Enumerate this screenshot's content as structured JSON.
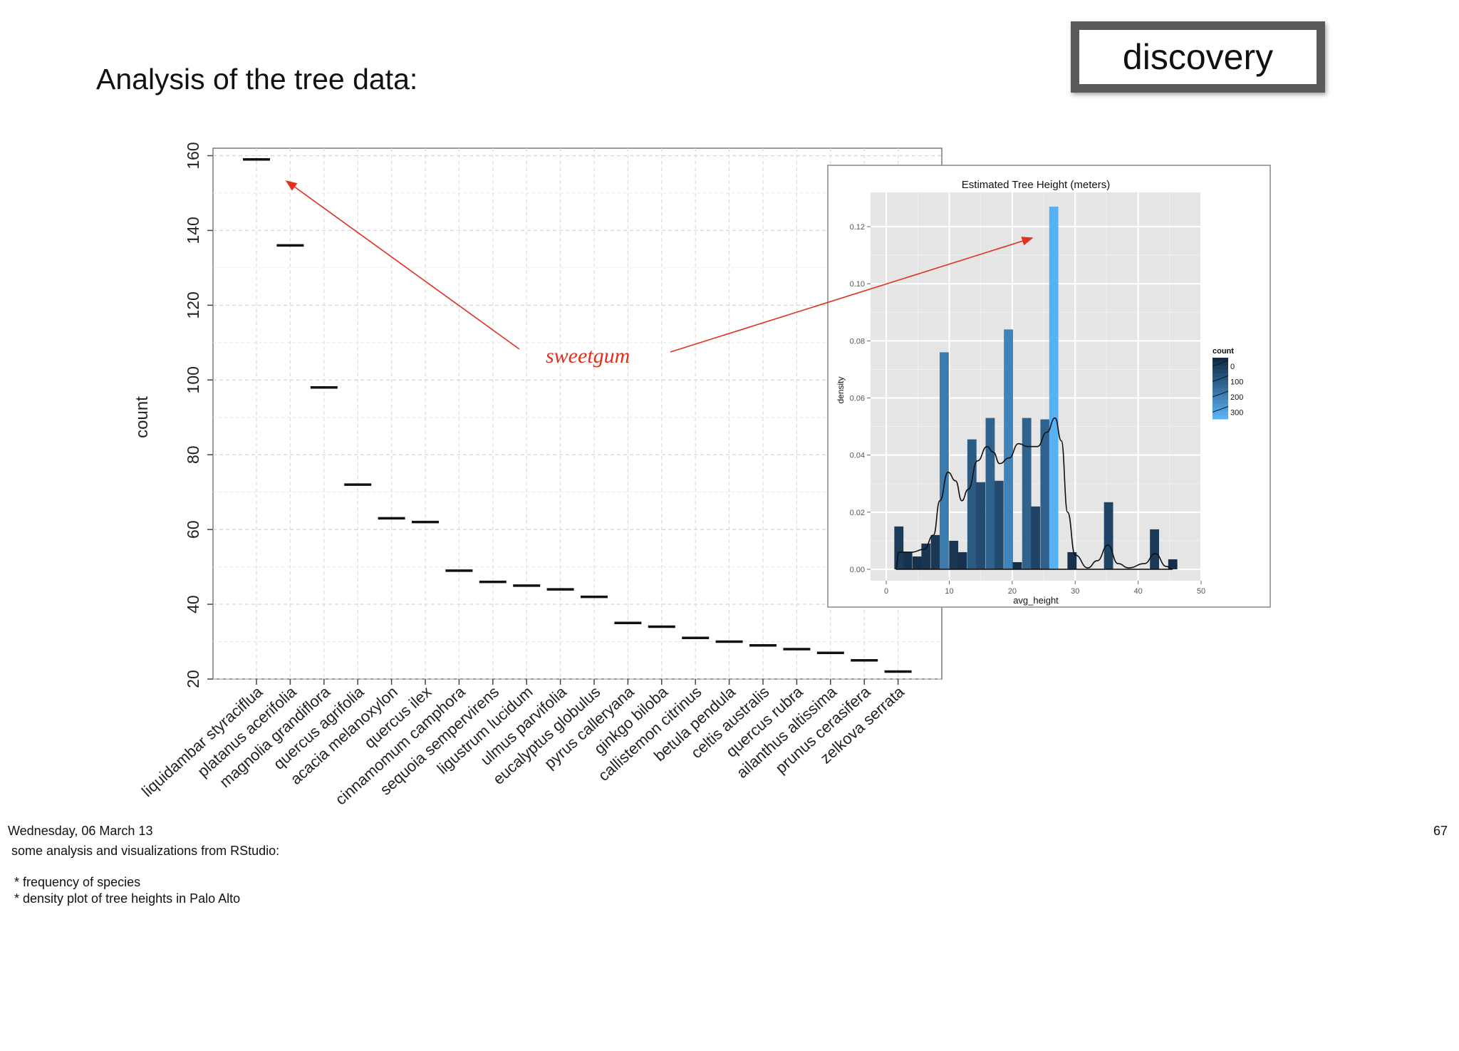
{
  "slide": {
    "title": "Analysis of the tree data:",
    "badge": "discovery",
    "annotation": "sweetgum",
    "annotation_color": "#e0301e",
    "date": "Wednesday, 06 March 13",
    "page_number": "67",
    "notes": [
      "some analysis and visualizations from RStudio:",
      "* frequency of species",
      "* density plot of tree heights in Palo Alto"
    ]
  },
  "chart_data": [
    {
      "type": "bar",
      "title": "",
      "xlabel": "",
      "ylabel": "count",
      "ylim": [
        20,
        162
      ],
      "yticks": [
        20,
        40,
        60,
        80,
        100,
        120,
        140,
        160
      ],
      "grid": true,
      "categories": [
        "liquidambar styraciflua",
        "platanus acerifolia",
        "magnolia grandiflora",
        "quercus agrifolia",
        "acacia melanoxylon",
        "quercus ilex",
        "cinnamomum camphora",
        "sequoia sempervirens",
        "ligustrum lucidum",
        "ulmus parvifolia",
        "eucalyptus globulus",
        "pyrus calleryana",
        "ginkgo biloba",
        "callistemon citrinus",
        "betula pendula",
        "celtis australis",
        "quercus rubra",
        "ailanthus altissima",
        "prunus cerasifera",
        "zelkova serrata"
      ],
      "values": [
        159,
        136,
        98,
        72,
        63,
        62,
        49,
        46,
        45,
        44,
        42,
        35,
        34,
        31,
        30,
        29,
        28,
        27,
        25,
        22
      ]
    },
    {
      "type": "bar",
      "title": "Estimated Tree Height (meters)",
      "xlabel": "avg_height",
      "ylabel": "density",
      "xlim": [
        -2.5,
        50
      ],
      "xticks": [
        0,
        10,
        20,
        30,
        40,
        50
      ],
      "ylim": [
        -0.004,
        0.132
      ],
      "yticks": [
        "0.00",
        "0.02",
        "0.04",
        "0.06",
        "0.08",
        "0.10",
        "0.12"
      ],
      "grid": true,
      "legend": {
        "title": "count",
        "labels": [
          "0",
          "100",
          "200",
          "300"
        ],
        "placement": "right"
      },
      "bin_width": 1.45,
      "bins": [
        {
          "x": 2.0,
          "density": 0.015,
          "count": 55
        },
        {
          "x": 3.4,
          "density": 0.006,
          "count": 25
        },
        {
          "x": 4.9,
          "density": 0.0045,
          "count": 20
        },
        {
          "x": 6.3,
          "density": 0.009,
          "count": 35
        },
        {
          "x": 7.8,
          "density": 0.012,
          "count": 45
        },
        {
          "x": 9.2,
          "density": 0.076,
          "count": 270
        },
        {
          "x": 10.7,
          "density": 0.01,
          "count": 40
        },
        {
          "x": 12.1,
          "density": 0.006,
          "count": 25
        },
        {
          "x": 13.6,
          "density": 0.0455,
          "count": 160
        },
        {
          "x": 15.0,
          "density": 0.0305,
          "count": 110
        },
        {
          "x": 16.5,
          "density": 0.053,
          "count": 190
        },
        {
          "x": 17.9,
          "density": 0.031,
          "count": 110
        },
        {
          "x": 19.4,
          "density": 0.084,
          "count": 300
        },
        {
          "x": 20.8,
          "density": 0.0025,
          "count": 10
        },
        {
          "x": 22.3,
          "density": 0.053,
          "count": 190
        },
        {
          "x": 23.7,
          "density": 0.022,
          "count": 80
        },
        {
          "x": 25.2,
          "density": 0.0525,
          "count": 185
        },
        {
          "x": 26.6,
          "density": 0.127,
          "count": 455
        },
        {
          "x": 29.5,
          "density": 0.006,
          "count": 22
        },
        {
          "x": 35.3,
          "density": 0.0235,
          "count": 85
        },
        {
          "x": 42.6,
          "density": 0.014,
          "count": 50
        },
        {
          "x": 45.5,
          "density": 0.0035,
          "count": 12
        }
      ],
      "density_curve": [
        [
          1.5,
          0.0
        ],
        [
          2,
          0.006
        ],
        [
          4,
          0.006
        ],
        [
          6,
          0.007
        ],
        [
          7.5,
          0.012
        ],
        [
          8.5,
          0.024
        ],
        [
          9.8,
          0.034
        ],
        [
          11,
          0.031
        ],
        [
          12,
          0.024
        ],
        [
          13,
          0.028
        ],
        [
          14.5,
          0.038
        ],
        [
          16,
          0.043
        ],
        [
          17,
          0.041
        ],
        [
          18,
          0.037
        ],
        [
          19.5,
          0.039
        ],
        [
          21,
          0.044
        ],
        [
          22.5,
          0.043
        ],
        [
          24,
          0.043
        ],
        [
          25.5,
          0.048
        ],
        [
          26.8,
          0.053
        ],
        [
          27.8,
          0.045
        ],
        [
          28.8,
          0.02
        ],
        [
          30,
          0.005
        ],
        [
          32,
          0.0005
        ],
        [
          33.5,
          0.003
        ],
        [
          35.2,
          0.0085
        ],
        [
          36.8,
          0.002
        ],
        [
          38.5,
          0.0005
        ],
        [
          41,
          0.002
        ],
        [
          42.7,
          0.0055
        ],
        [
          44.5,
          0.001
        ],
        [
          45.5,
          0.0
        ]
      ]
    }
  ]
}
